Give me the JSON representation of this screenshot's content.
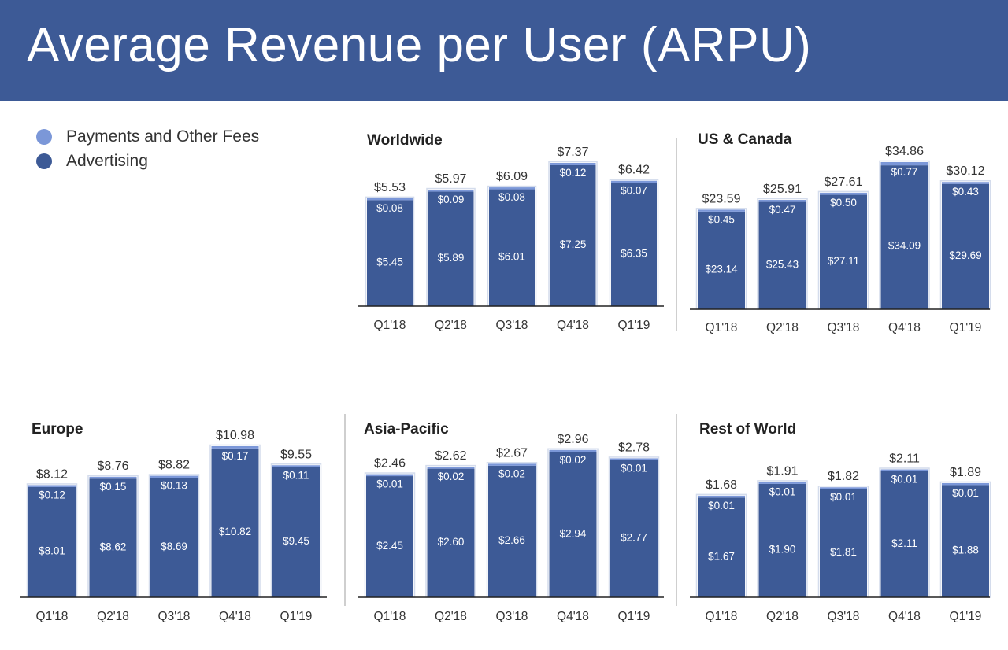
{
  "title": "Average Revenue per User (ARPU)",
  "colors": {
    "header_bg": "#3d5a96",
    "advertising": "#3d5a96",
    "payments": "#7b97d8",
    "axis": "#222222",
    "text": "#333333"
  },
  "legend": {
    "items": [
      {
        "label": "Payments and Other Fees",
        "color": "#7b97d8"
      },
      {
        "label": "Advertising",
        "color": "#3d5a96"
      }
    ]
  },
  "chart_data": [
    {
      "type": "bar",
      "title": "Worldwide",
      "categories": [
        "Q1'18",
        "Q2'18",
        "Q3'18",
        "Q4'18",
        "Q1'19"
      ],
      "series": [
        {
          "name": "Advertising",
          "values": [
            "$5.45",
            "$5.89",
            "$6.01",
            "$7.25",
            "$6.35"
          ]
        },
        {
          "name": "Payments and Other Fees",
          "values": [
            "$0.08",
            "$0.09",
            "$0.08",
            "$0.12",
            "$0.07"
          ]
        }
      ],
      "totals": [
        "$5.53",
        "$5.97",
        "$6.09",
        "$7.37",
        "$6.42"
      ]
    },
    {
      "type": "bar",
      "title": "US & Canada",
      "categories": [
        "Q1'18",
        "Q2'18",
        "Q3'18",
        "Q4'18",
        "Q1'19"
      ],
      "series": [
        {
          "name": "Advertising",
          "values": [
            "$23.14",
            "$25.43",
            "$27.11",
            "$34.09",
            "$29.69"
          ]
        },
        {
          "name": "Payments and Other Fees",
          "values": [
            "$0.45",
            "$0.47",
            "$0.50",
            "$0.77",
            "$0.43"
          ]
        }
      ],
      "totals": [
        "$23.59",
        "$25.91",
        "$27.61",
        "$34.86",
        "$30.12"
      ]
    },
    {
      "type": "bar",
      "title": "Europe",
      "categories": [
        "Q1'18",
        "Q2'18",
        "Q3'18",
        "Q4'18",
        "Q1'19"
      ],
      "series": [
        {
          "name": "Advertising",
          "values": [
            "$8.01",
            "$8.62",
            "$8.69",
            "$10.82",
            "$9.45"
          ]
        },
        {
          "name": "Payments and Other Fees",
          "values": [
            "$0.12",
            "$0.15",
            "$0.13",
            "$0.17",
            "$0.11"
          ]
        }
      ],
      "totals": [
        "$8.12",
        "$8.76",
        "$8.82",
        "$10.98",
        "$9.55"
      ]
    },
    {
      "type": "bar",
      "title": "Asia-Pacific",
      "categories": [
        "Q1'18",
        "Q2'18",
        "Q3'18",
        "Q4'18",
        "Q1'19"
      ],
      "series": [
        {
          "name": "Advertising",
          "values": [
            "$2.45",
            "$2.60",
            "$2.66",
            "$2.94",
            "$2.77"
          ]
        },
        {
          "name": "Payments and Other Fees",
          "values": [
            "$0.01",
            "$0.02",
            "$0.02",
            "$0.02",
            "$0.01"
          ]
        }
      ],
      "totals": [
        "$2.46",
        "$2.62",
        "$2.67",
        "$2.96",
        "$2.78"
      ]
    },
    {
      "type": "bar",
      "title": "Rest of World",
      "categories": [
        "Q1'18",
        "Q2'18",
        "Q3'18",
        "Q4'18",
        "Q1'19"
      ],
      "series": [
        {
          "name": "Advertising",
          "values": [
            "$1.67",
            "$1.90",
            "$1.81",
            "$2.11",
            "$1.88"
          ]
        },
        {
          "name": "Payments and Other Fees",
          "values": [
            "$0.01",
            "$0.01",
            "$0.01",
            "$0.01",
            "$0.01"
          ]
        }
      ],
      "totals": [
        "$1.68",
        "$1.91",
        "$1.82",
        "$2.11",
        "$1.89"
      ]
    }
  ]
}
